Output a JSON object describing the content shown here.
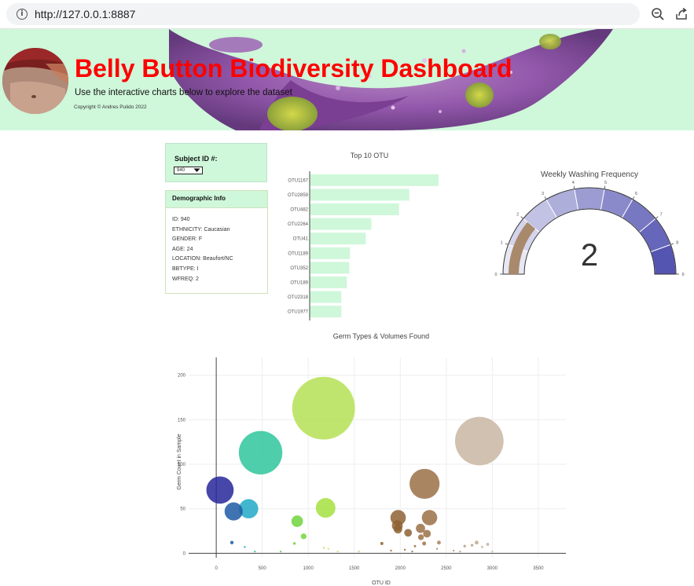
{
  "browser": {
    "url_prefix": "http://",
    "url_host": "127.0.0.1",
    "url_suffix": ":8887",
    "icons": [
      "info-icon",
      "zoom-out-icon",
      "share-icon"
    ]
  },
  "header": {
    "title": "Belly Button Biodiversity Dashboard",
    "subtitle": "Use the interactive charts below to explore the dataset",
    "copyright": "Copyright © Andres Pulido 2022"
  },
  "subject": {
    "label": "Subject ID #:",
    "selected": "940"
  },
  "demographic": {
    "title": "Demographic Info",
    "items": [
      "ID: 940",
      "ETHNICITY: Caucasian",
      "GENDER: F",
      "AGE: 24",
      "LOCATION: Beaufort/NC",
      "BBTYPE: I",
      "WFREQ: 2"
    ]
  },
  "chart_data": [
    {
      "type": "bar",
      "orientation": "horizontal",
      "title": "Top 10 OTU",
      "categories": [
        "OTU1167",
        "OTU2859",
        "OTU482",
        "OTU2264",
        "OTU41",
        "OTU1189",
        "OTU352",
        "OTU189",
        "OTU2318",
        "OTU1977"
      ],
      "values": [
        163,
        126,
        113,
        78,
        71,
        51,
        50,
        47,
        40,
        40
      ],
      "color": "#cff7da",
      "xlim": [
        0,
        170
      ]
    },
    {
      "type": "gauge",
      "title": "Weekly Washing Frequency",
      "value": 2,
      "range": [
        0,
        9
      ],
      "ticks": [
        "0",
        "1",
        "2",
        "3",
        "4",
        "5",
        "6",
        "7",
        "8",
        "9"
      ],
      "bar_color": "#a8896c",
      "step_colors": [
        "#e8e8f5",
        "#d4d4ec",
        "#c2c2e4",
        "#aeaedb",
        "#9c9cd3",
        "#8a8acb",
        "#7878c2",
        "#6666ba",
        "#5454b1"
      ]
    },
    {
      "type": "scatter",
      "subtype": "bubble",
      "title": "Germ Types & Volumes Found",
      "xlabel": "OTU ID",
      "ylabel": "Germ Count in Sample",
      "xlim": [
        -300,
        3800
      ],
      "ylim": [
        -5,
        220
      ],
      "x_ticks": [
        0,
        500,
        1000,
        1500,
        2000,
        2500,
        3000,
        3500
      ],
      "y_ticks": [
        0,
        50,
        100,
        150,
        200
      ],
      "points": [
        {
          "x": 1167,
          "y": 163,
          "size": 163,
          "color": "#b5e155"
        },
        {
          "x": 2859,
          "y": 126,
          "size": 126,
          "color": "#c9b6a2"
        },
        {
          "x": 482,
          "y": 113,
          "size": 113,
          "color": "#2fc59c"
        },
        {
          "x": 2264,
          "y": 78,
          "size": 78,
          "color": "#9b7047"
        },
        {
          "x": 41,
          "y": 71,
          "size": 71,
          "color": "#27269a"
        },
        {
          "x": 1189,
          "y": 51,
          "size": 51,
          "color": "#a5e03f"
        },
        {
          "x": 352,
          "y": 50,
          "size": 50,
          "color": "#20a9c5"
        },
        {
          "x": 189,
          "y": 47,
          "size": 47,
          "color": "#1f5ba3"
        },
        {
          "x": 2318,
          "y": 40,
          "size": 40,
          "color": "#9b7047"
        },
        {
          "x": 1977,
          "y": 40,
          "size": 40,
          "color": "#8e6232"
        },
        {
          "x": 880,
          "y": 36,
          "size": 30,
          "color": "#6fd43c"
        },
        {
          "x": 1968,
          "y": 31,
          "size": 28,
          "color": "#8e6232"
        },
        {
          "x": 1975,
          "y": 27,
          "size": 22,
          "color": "#8e6232"
        },
        {
          "x": 2220,
          "y": 28,
          "size": 24,
          "color": "#9b7047"
        },
        {
          "x": 2085,
          "y": 23,
          "size": 20,
          "color": "#8e6232"
        },
        {
          "x": 2290,
          "y": 22,
          "size": 20,
          "color": "#9b7047"
        },
        {
          "x": 2225,
          "y": 18,
          "size": 15,
          "color": "#9b7047"
        },
        {
          "x": 950,
          "y": 19,
          "size": 15,
          "color": "#74d63a"
        },
        {
          "x": 2260,
          "y": 11,
          "size": 10,
          "color": "#9b7047"
        },
        {
          "x": 2420,
          "y": 12,
          "size": 10,
          "color": "#a88260"
        },
        {
          "x": 2830,
          "y": 12,
          "size": 10,
          "color": "#c2a891"
        },
        {
          "x": 2950,
          "y": 10,
          "size": 8,
          "color": "#c9b6a2"
        },
        {
          "x": 170,
          "y": 12,
          "size": 9,
          "color": "#1f5ba3"
        },
        {
          "x": 2780,
          "y": 9,
          "size": 7,
          "color": "#bba089"
        },
        {
          "x": 2700,
          "y": 8,
          "size": 7,
          "color": "#bba089"
        },
        {
          "x": 1800,
          "y": 11,
          "size": 8,
          "color": "#8e6232"
        },
        {
          "x": 850,
          "y": 11,
          "size": 7,
          "color": "#6fd43c"
        },
        {
          "x": 2160,
          "y": 8,
          "size": 6,
          "color": "#9b7047"
        },
        {
          "x": 2890,
          "y": 7,
          "size": 6,
          "color": "#c9b6a2"
        },
        {
          "x": 310,
          "y": 7,
          "size": 5,
          "color": "#20a9c5"
        },
        {
          "x": 1170,
          "y": 6,
          "size": 5,
          "color": "#b5e155"
        },
        {
          "x": 1220,
          "y": 5,
          "size": 4,
          "color": "#c4e86a"
        },
        {
          "x": 2400,
          "y": 5,
          "size": 4,
          "color": "#a88260"
        },
        {
          "x": 2050,
          "y": 4,
          "size": 4,
          "color": "#8e6232"
        },
        {
          "x": 1900,
          "y": 3,
          "size": 3,
          "color": "#8e6232"
        },
        {
          "x": 2580,
          "y": 3,
          "size": 3,
          "color": "#b09070"
        },
        {
          "x": 1550,
          "y": 2,
          "size": 3,
          "color": "#c0d590"
        },
        {
          "x": 2130,
          "y": 2,
          "size": 3,
          "color": "#9b7047"
        },
        {
          "x": 700,
          "y": 2,
          "size": 3,
          "color": "#5fcf70"
        },
        {
          "x": 420,
          "y": 2,
          "size": 3,
          "color": "#2fc59c"
        },
        {
          "x": 2650,
          "y": 2,
          "size": 3,
          "color": "#bba089"
        },
        {
          "x": 3000,
          "y": 2,
          "size": 3,
          "color": "#cfc0b0"
        },
        {
          "x": 1320,
          "y": 2,
          "size": 3,
          "color": "#c4e86a"
        }
      ]
    }
  ]
}
